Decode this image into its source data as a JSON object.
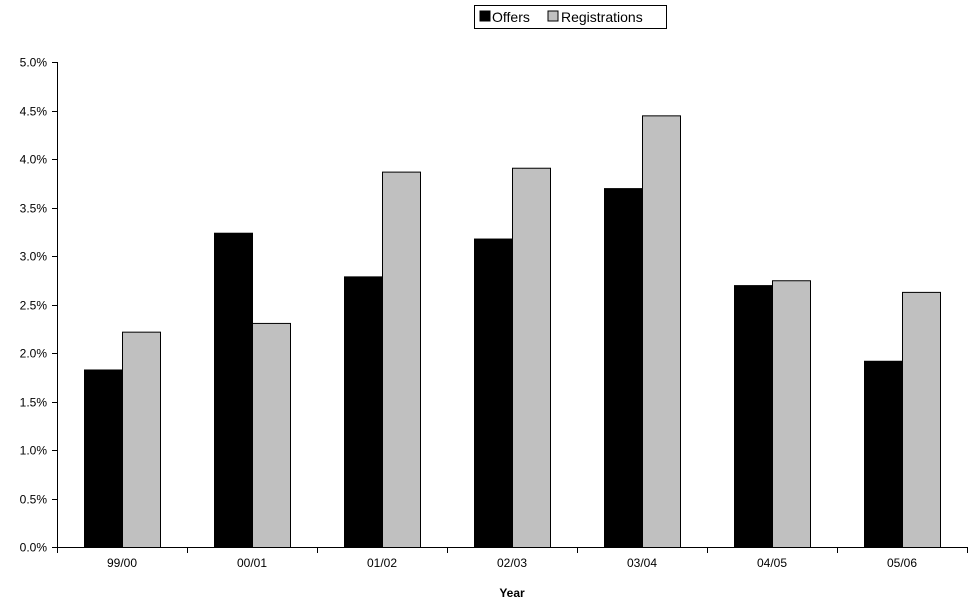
{
  "chart_data": {
    "type": "bar",
    "title": "",
    "xlabel": "Year",
    "ylabel": "",
    "categories": [
      "99/00",
      "00/01",
      "01/02",
      "02/03",
      "03/04",
      "04/05",
      "05/06"
    ],
    "series": [
      {
        "name": "Offers",
        "color": "#000000",
        "values": [
          1.83,
          3.24,
          2.79,
          3.18,
          3.7,
          2.7,
          1.92
        ]
      },
      {
        "name": "Registrations",
        "color": "#c0c0c0",
        "values": [
          2.22,
          2.31,
          3.87,
          3.91,
          4.45,
          2.75,
          2.63
        ]
      }
    ],
    "ylim": [
      0,
      5.0
    ],
    "y_ticks": [
      "0.0%",
      "0.5%",
      "1.0%",
      "1.5%",
      "2.0%",
      "2.5%",
      "3.0%",
      "3.5%",
      "4.0%",
      "4.5%",
      "5.0%"
    ],
    "y_unit": "%",
    "grid": false,
    "legend_position": "top-center"
  }
}
